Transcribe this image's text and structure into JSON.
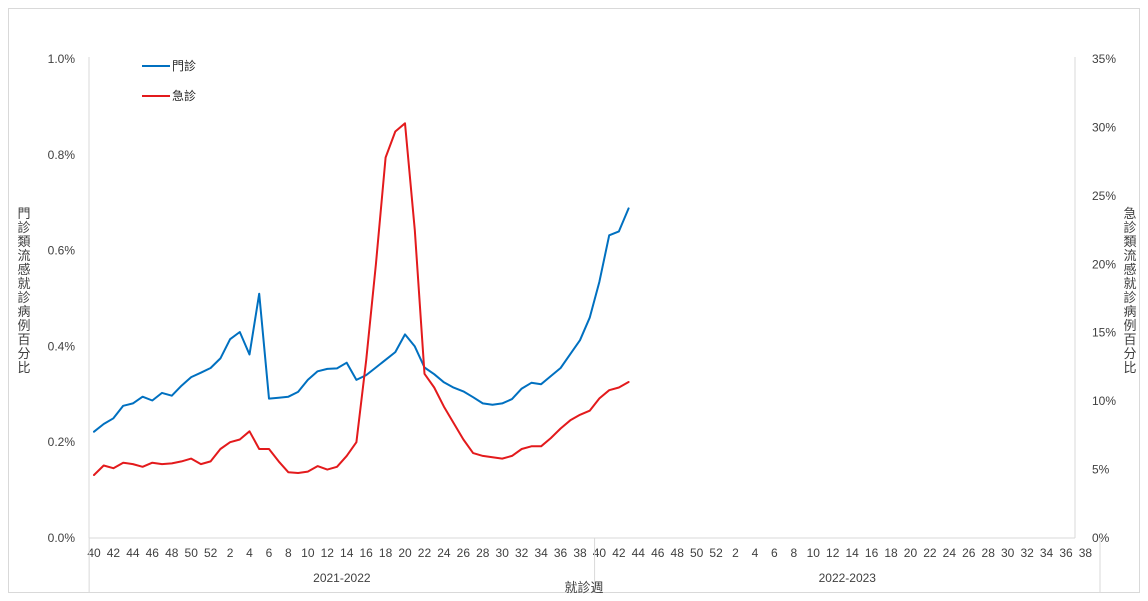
{
  "chart_data": {
    "type": "line",
    "xlabel": "就診週",
    "ylabel_left": "門診類流感就診病例百分比",
    "ylabel_right": "急診類流感就診病例百分比",
    "y_left": {
      "min": 0,
      "max": 1.0,
      "ticks": [
        "0.0%",
        "0.2%",
        "0.4%",
        "0.6%",
        "0.8%",
        "1.0%"
      ]
    },
    "y_right": {
      "min": 0,
      "max": 35,
      "ticks": [
        "0%",
        "5%",
        "10%",
        "15%",
        "20%",
        "25%",
        "30%",
        "35%"
      ]
    },
    "x_tick_labels": [
      "40",
      "42",
      "44",
      "46",
      "48",
      "50",
      "52",
      "2",
      "4",
      "6",
      "8",
      "10",
      "12",
      "14",
      "16",
      "18",
      "20",
      "22",
      "24",
      "26",
      "28",
      "30",
      "32",
      "34",
      "36",
      "38",
      "40",
      "42",
      "44",
      "46",
      "48",
      "50",
      "52",
      "2",
      "4",
      "6",
      "8",
      "10",
      "12",
      "14",
      "16",
      "18",
      "20",
      "22",
      "24",
      "26",
      "28",
      "30",
      "32",
      "34",
      "36",
      "38"
    ],
    "season_groups": [
      {
        "label": "2021-2022",
        "weeks": 52
      },
      {
        "label": "2022-2023",
        "weeks": 52
      }
    ],
    "series": [
      {
        "name": "門診",
        "axis": "left",
        "color": "#0070C0",
        "values": [
          0.222,
          0.238,
          0.25,
          0.276,
          0.281,
          0.295,
          0.287,
          0.303,
          0.297,
          0.318,
          0.336,
          0.345,
          0.355,
          0.375,
          0.415,
          0.43,
          0.383,
          0.51,
          0.291,
          0.293,
          0.295,
          0.305,
          0.33,
          0.348,
          0.353,
          0.354,
          0.366,
          0.33,
          0.34,
          0.356,
          0.372,
          0.388,
          0.425,
          0.4,
          0.356,
          0.342,
          0.325,
          0.314,
          0.306,
          0.294,
          0.281,
          0.278,
          0.281,
          0.29,
          0.312,
          0.324,
          0.321,
          0.338,
          0.355,
          0.384,
          0.413,
          0.46,
          0.535,
          0.632,
          0.64,
          0.688
        ]
      },
      {
        "name": "急診",
        "axis": "right",
        "color": "#E31A1C",
        "values": [
          4.6,
          5.3,
          5.1,
          5.5,
          5.4,
          5.2,
          5.5,
          5.4,
          5.45,
          5.6,
          5.8,
          5.4,
          5.6,
          6.5,
          7.0,
          7.2,
          7.8,
          6.5,
          6.5,
          5.6,
          4.8,
          4.75,
          4.85,
          5.25,
          5.0,
          5.2,
          6.0,
          7.0,
          13.0,
          20.0,
          27.8,
          29.7,
          30.3,
          22.5,
          12.0,
          11.0,
          9.6,
          8.4,
          7.2,
          6.2,
          6.0,
          5.9,
          5.8,
          6.0,
          6.5,
          6.7,
          6.7,
          7.3,
          8.0,
          8.6,
          9.0,
          9.3,
          10.2,
          10.8,
          11.0,
          11.4
        ]
      }
    ],
    "legend_position": "top-left",
    "grid": false
  }
}
